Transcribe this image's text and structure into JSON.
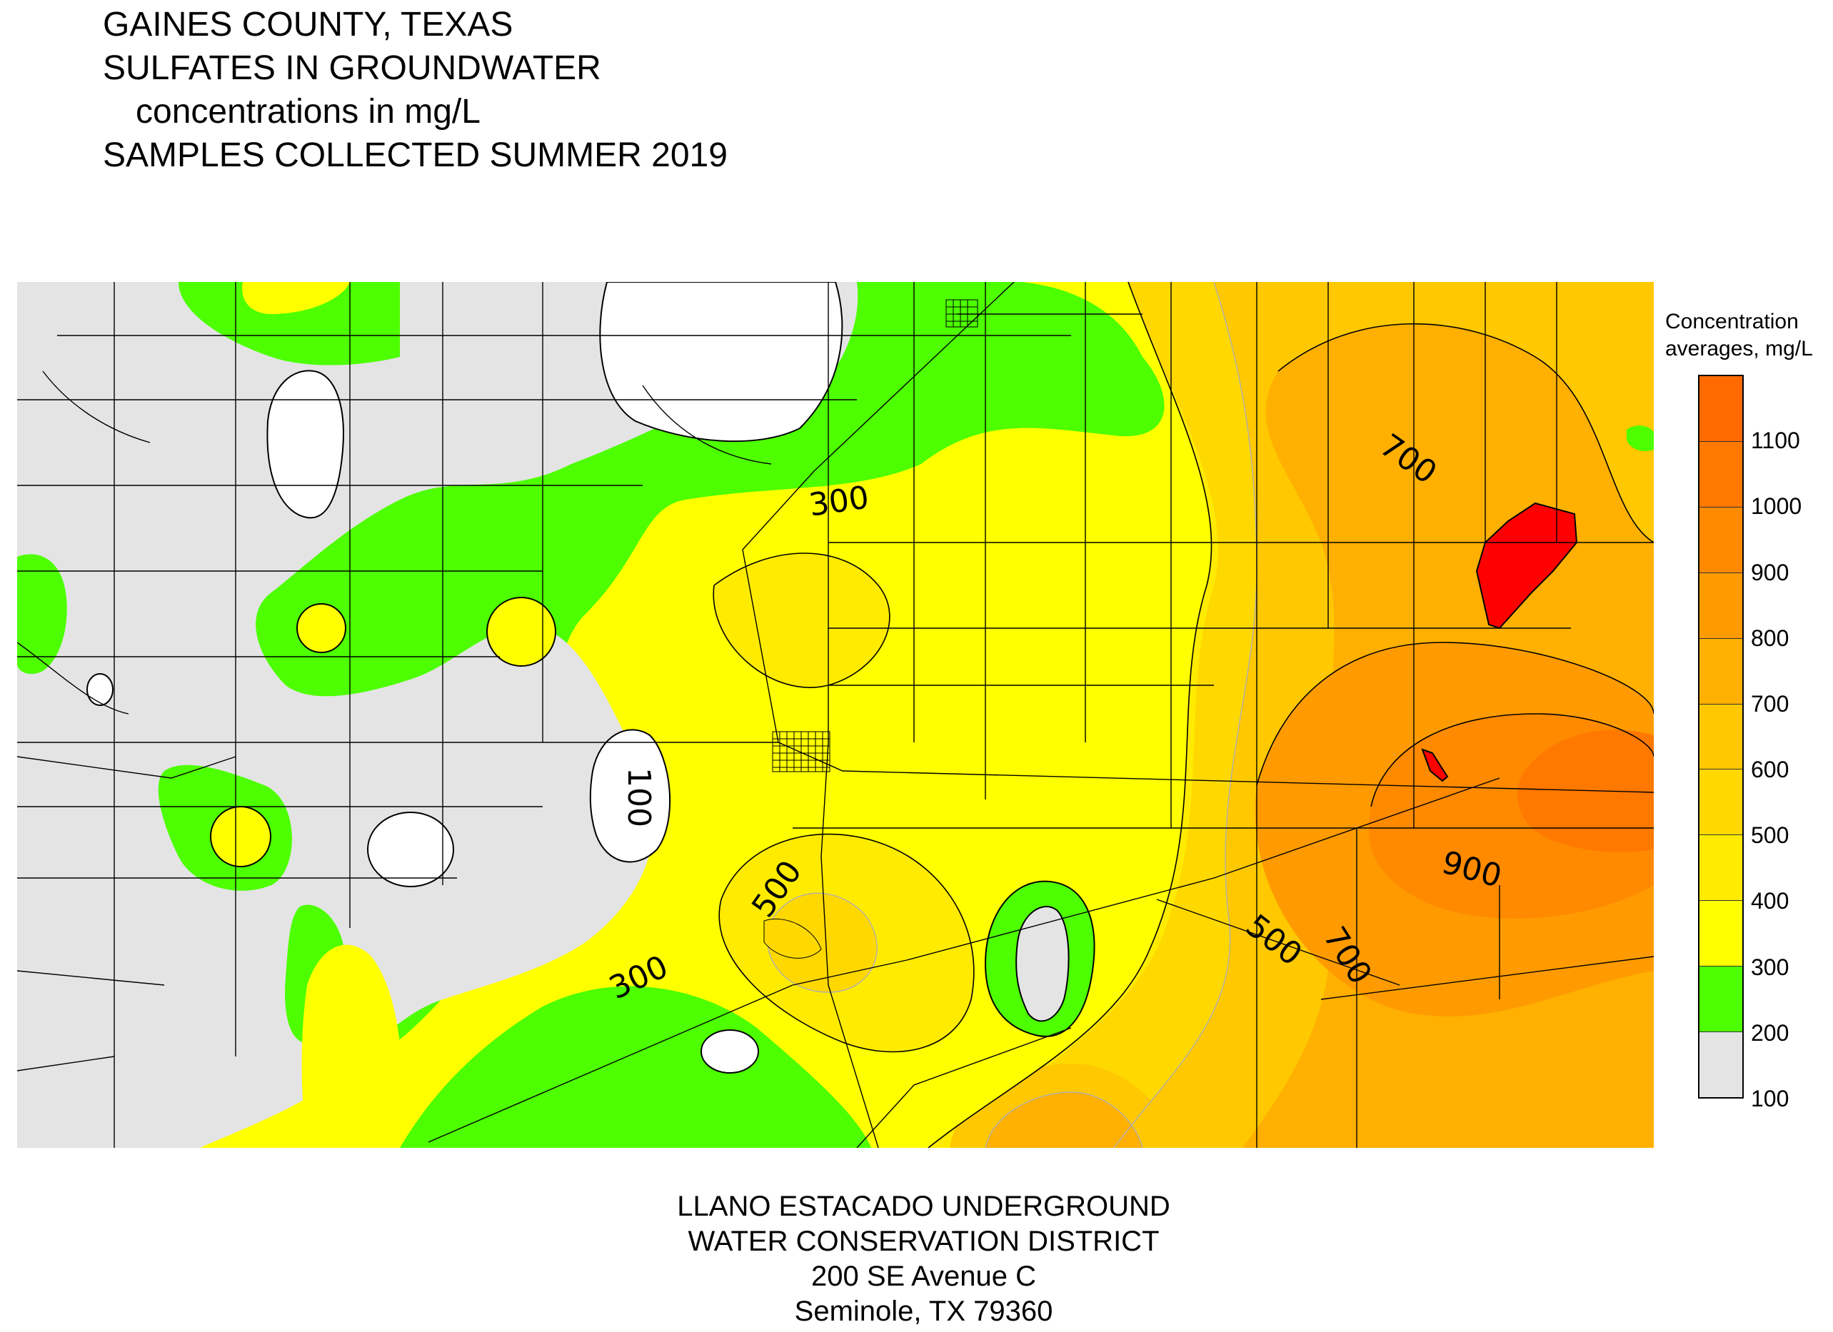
{
  "title": {
    "line1": "GAINES COUNTY, TEXAS",
    "line2": "SULFATES IN GROUNDWATER",
    "line3": "concentrations in mg/L",
    "line4": "SAMPLES COLLECTED SUMMER 2019"
  },
  "legend": {
    "title_line1": "Concentration",
    "title_line2": "averages, mg/L",
    "ticks": [
      "100",
      "200",
      "300",
      "400",
      "500",
      "600",
      "700",
      "800",
      "900",
      "1000",
      "1100"
    ],
    "bins": [
      {
        "range": "100-200",
        "color": "#e4e4e4"
      },
      {
        "range": "200-300",
        "color": "#4dff00"
      },
      {
        "range": "300-400",
        "color": "#ffff00"
      },
      {
        "range": "400-500",
        "color": "#ffeb00"
      },
      {
        "range": "500-600",
        "color": "#ffd800"
      },
      {
        "range": "600-700",
        "color": "#ffc800"
      },
      {
        "range": "700-800",
        "color": "#ffb000"
      },
      {
        "range": "800-900",
        "color": "#ff9b00"
      },
      {
        "range": "900-1000",
        "color": "#ff8a00"
      },
      {
        "range": "1000-1100",
        "color": "#ff7800"
      },
      {
        "range": "1100-1200",
        "color": "#ff6a00"
      }
    ],
    "high_color": "#ff0000"
  },
  "contour_labels": [
    "300",
    "100",
    "500",
    "300",
    "700",
    "900",
    "500",
    "700"
  ],
  "footer": {
    "line1": "LLANO ESTACADO UNDERGROUND",
    "line2": "WATER CONSERVATION DISTRICT",
    "line3": "200 SE Avenue C",
    "line4": "Seminole, TX  79360"
  }
}
